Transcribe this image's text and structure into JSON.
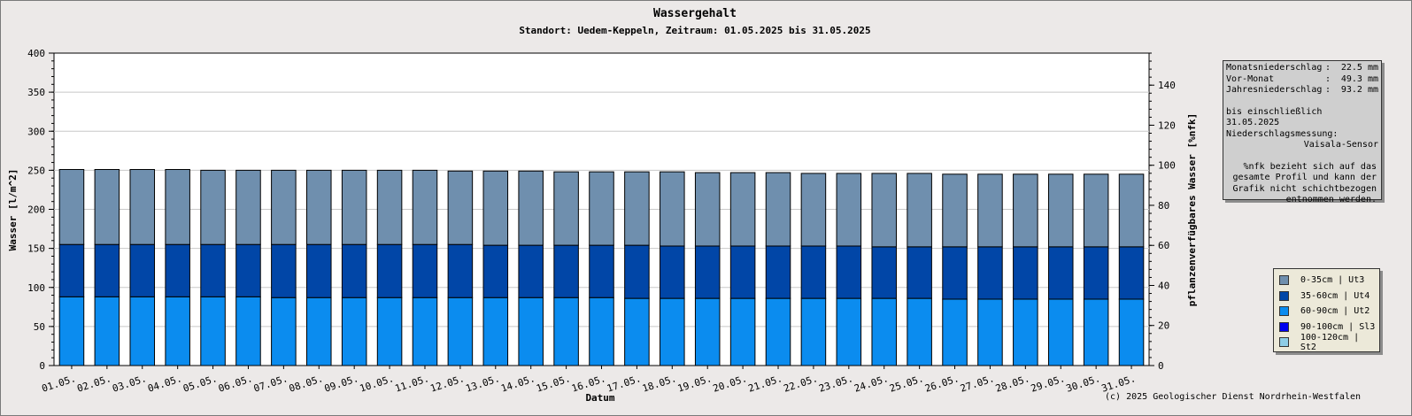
{
  "title": "Wassergehalt",
  "subtitle": "Standort: Uedem-Keppeln, Zeitraum: 01.05.2025 bis 31.05.2025",
  "copyright": "(c) 2025 Geologischer Dienst Nordrhein-Westfalen",
  "info": {
    "rows": [
      {
        "label": "Monatsniederschlag",
        "sep": ":",
        "value": "22.5 mm"
      },
      {
        "label": "Vor-Monat",
        "sep": ":",
        "value": "49.3 mm"
      },
      {
        "label": "Jahresniederschlag",
        "sep": ":",
        "value": "93.2 mm"
      }
    ],
    "line1": "bis einschließlich 31.05.2025",
    "line2": "Niederschlagsmessung:",
    "line3": "Vaisala-Sensor",
    "note": "%nfk bezieht sich auf das gesamte Profil und kann der Grafik nicht schichtbezogen entnommen werden."
  },
  "colors": {
    "layer1": "#6f8fae",
    "layer2": "#0146a7",
    "layer3": "#0b8cef",
    "layer4": "#0000ee",
    "layer5": "#8ecde6",
    "plot_bg": "#ffffff",
    "grid": "#c8c8c8"
  },
  "chart_data": {
    "type": "bar",
    "stacked": true,
    "title": "Wassergehalt",
    "subtitle": "Standort: Uedem-Keppeln, Zeitraum: 01.05.2025 bis 31.05.2025",
    "xlabel": "Datum",
    "ylabel": "Wasser [l/m^2]",
    "y2label": "pflanzenverfügbares Wasser [%nfk]",
    "ylim": [
      0,
      400
    ],
    "yticks": [
      0,
      50,
      100,
      150,
      200,
      250,
      300,
      350,
      400
    ],
    "y2lim": [
      0,
      156
    ],
    "y2ticks": [
      0,
      20,
      40,
      60,
      80,
      100,
      120,
      140
    ],
    "grid": true,
    "legend_position": "right",
    "categories": [
      "01.05.",
      "02.05.",
      "03.05.",
      "04.05.",
      "05.05.",
      "06.05.",
      "07.05.",
      "08.05.",
      "09.05.",
      "10.05.",
      "11.05.",
      "12.05.",
      "13.05.",
      "14.05.",
      "15.05.",
      "16.05.",
      "17.05.",
      "18.05.",
      "19.05.",
      "20.05.",
      "21.05.",
      "22.05.",
      "23.05.",
      "24.05.",
      "25.05.",
      "26.05.",
      "27.05.",
      "28.05.",
      "29.05.",
      "30.05.",
      "31.05."
    ],
    "series": [
      {
        "name": "100-120cm | St2",
        "values": [
          0,
          0,
          0,
          0,
          0,
          0,
          0,
          0,
          0,
          0,
          0,
          0,
          0,
          0,
          0,
          0,
          0,
          0,
          0,
          0,
          0,
          0,
          0,
          0,
          0,
          0,
          0,
          0,
          0,
          0,
          0
        ]
      },
      {
        "name": "90-100cm | Sl3",
        "values": [
          0,
          0,
          0,
          0,
          0,
          0,
          0,
          0,
          0,
          0,
          0,
          0,
          0,
          0,
          0,
          0,
          0,
          0,
          0,
          0,
          0,
          0,
          0,
          0,
          0,
          0,
          0,
          0,
          0,
          0,
          0
        ]
      },
      {
        "name": "60-90cm | Ut2",
        "values": [
          88,
          88,
          88,
          88,
          88,
          88,
          87,
          87,
          87,
          87,
          87,
          87,
          87,
          87,
          87,
          87,
          86,
          86,
          86,
          86,
          86,
          86,
          86,
          86,
          86,
          85,
          85,
          85,
          85,
          85,
          85
        ]
      },
      {
        "name": "35-60cm | Ut4",
        "values": [
          67,
          67,
          67,
          67,
          67,
          67,
          68,
          68,
          68,
          68,
          68,
          68,
          67,
          67,
          67,
          67,
          68,
          67,
          67,
          67,
          67,
          67,
          67,
          66,
          66,
          67,
          67,
          67,
          67,
          67,
          67
        ]
      },
      {
        "name": "0-35cm | Ut3",
        "values": [
          96,
          96,
          96,
          96,
          95,
          95,
          95,
          95,
          95,
          95,
          95,
          94,
          95,
          95,
          94,
          94,
          94,
          95,
          94,
          94,
          94,
          93,
          93,
          94,
          94,
          93,
          93,
          93,
          93,
          93,
          93
        ]
      }
    ],
    "legend_order": [
      "0-35cm | Ut3",
      "35-60cm | Ut4",
      "60-90cm | Ut2",
      "90-100cm | Sl3",
      "100-120cm | St2"
    ]
  }
}
